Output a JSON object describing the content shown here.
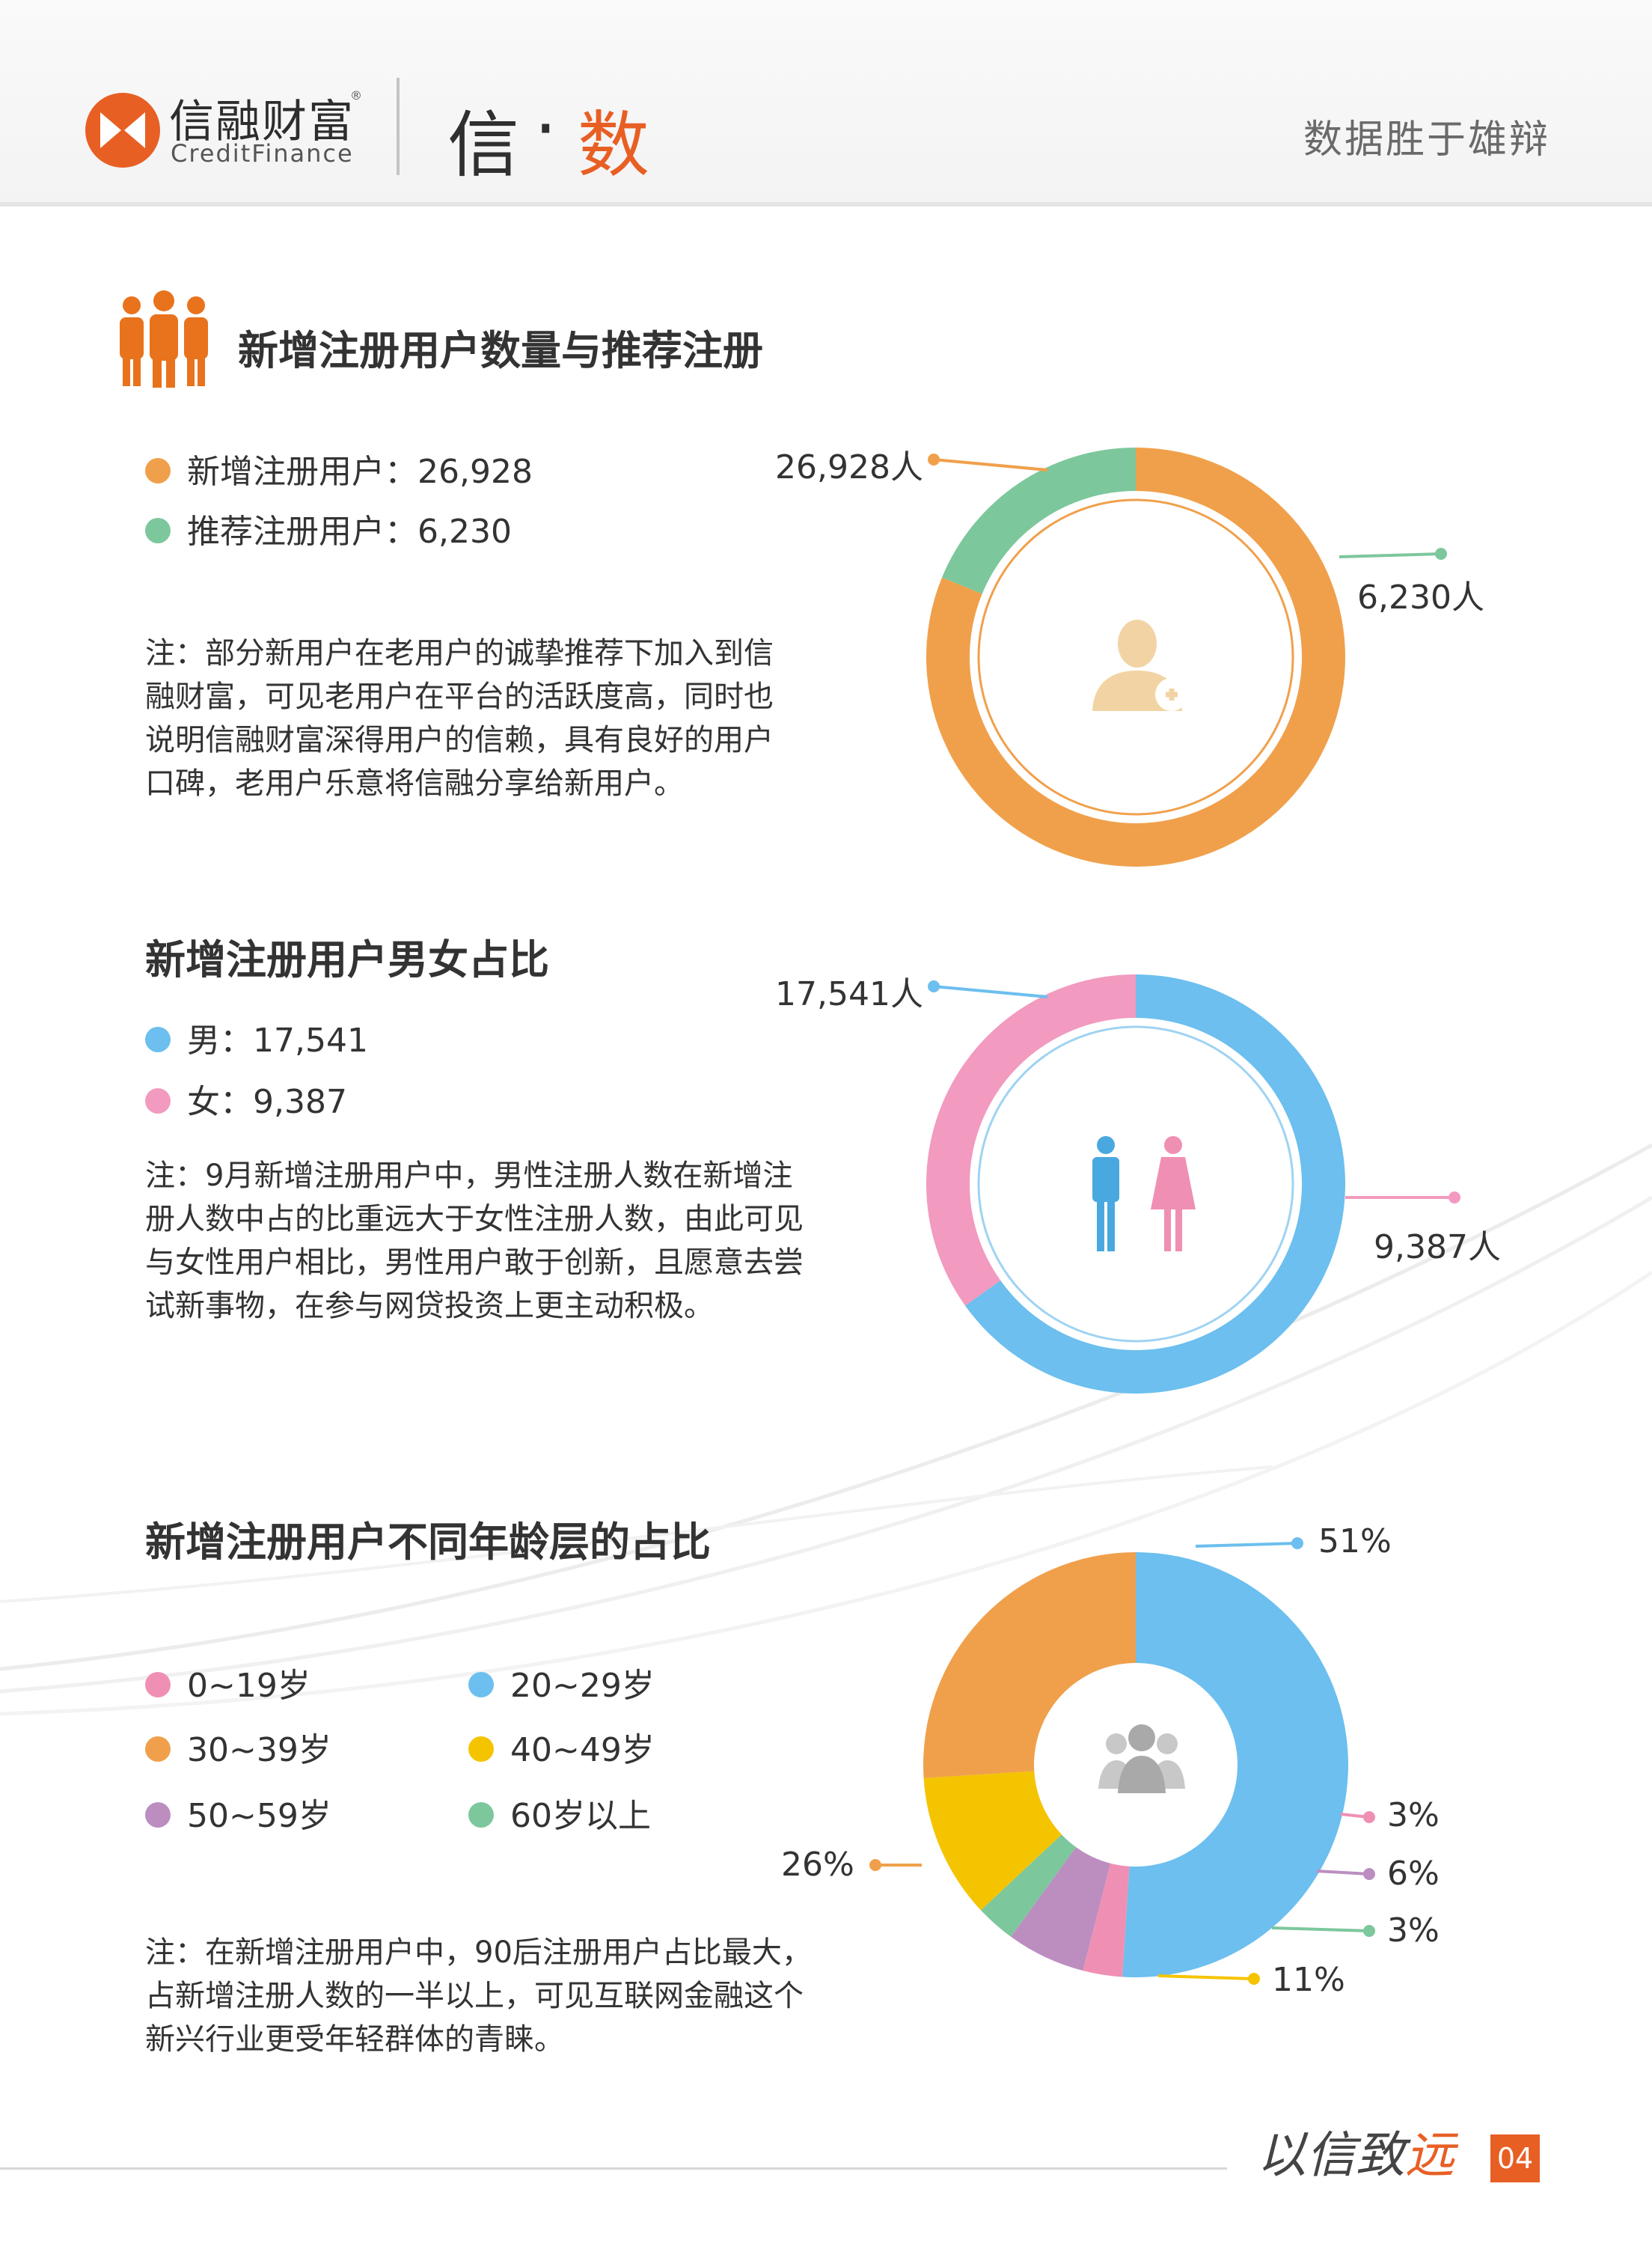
{
  "header": {
    "logo_cn": "信融财富",
    "logo_reg": "®",
    "logo_en": "CreditFinance",
    "brand_a": "信",
    "brand_dot": "·",
    "brand_b": "数",
    "slogan": "数据胜于雄辩",
    "logo_color": "#e85f24"
  },
  "section1": {
    "title": "新增注册用户数量与推荐注册",
    "legend": [
      {
        "label": "新增注册用户：26,928",
        "color": "#f0a04b"
      },
      {
        "label": "推荐注册用户：6,230",
        "color": "#7dc79c"
      }
    ],
    "note": [
      "注：部分新用户在老用户的诚挚推荐下加入到信",
      "融财富，可见老用户在平台的活跃度高，同时也",
      "说明信融财富深得用户的信赖，具有良好的用户",
      "口碑，老用户乐意将信融分享给新用户。"
    ],
    "callouts": [
      "26,928人",
      "6,230人"
    ],
    "center_icon": "user-add-icon"
  },
  "section2": {
    "title": "新增注册用户男女占比",
    "legend": [
      {
        "label": "男：17,541",
        "color": "#6cbfee"
      },
      {
        "label": "女：9,387",
        "color": "#f29abf"
      }
    ],
    "note": [
      "注：9月新增注册用户中，男性注册人数在新增注",
      "册人数中占的比重远大于女性注册人数，由此可见",
      "与女性用户相比，男性用户敢于创新，且愿意去尝",
      "试新事物，在参与网贷投资上更主动积极。"
    ],
    "callouts": [
      "17,541人",
      "9,387人"
    ],
    "center_icon": "male-female-icon"
  },
  "section3": {
    "title": "新增注册用户不同年龄层的占比",
    "legend": [
      {
        "label": "0~19岁",
        "color": "#f08fb4"
      },
      {
        "label": "20~29岁",
        "color": "#6cbfee"
      },
      {
        "label": "30~39岁",
        "color": "#f0a04b"
      },
      {
        "label": "40~49岁",
        "color": "#f5c400"
      },
      {
        "label": "50~59岁",
        "color": "#bc8ec0"
      },
      {
        "label": "60岁以上",
        "color": "#7dc79c"
      }
    ],
    "note": [
      "注：在新增注册用户中，90后注册用户占比最大，",
      "占新增注册人数的一半以上，可见互联网金融这个",
      "新兴行业更受年轻群体的青睐。"
    ],
    "callouts": [
      "51%",
      "3%",
      "6%",
      "3%",
      "11%",
      "26%"
    ],
    "center_icon": "user-group-icon"
  },
  "footer": {
    "motto_a": "以信致",
    "motto_b": "远",
    "page_number": "04"
  },
  "chart_data": [
    {
      "type": "pie",
      "title": "新增注册用户数量与推荐注册",
      "categories": [
        "新增注册用户",
        "推荐注册用户"
      ],
      "values": [
        26928,
        6230
      ],
      "colors": [
        "#f0a04b",
        "#7dc79c"
      ],
      "unit": "人",
      "style": "donut"
    },
    {
      "type": "pie",
      "title": "新增注册用户男女占比",
      "categories": [
        "男",
        "女"
      ],
      "values": [
        17541,
        9387
      ],
      "colors": [
        "#6cbfee",
        "#f29abf"
      ],
      "unit": "人",
      "style": "donut"
    },
    {
      "type": "pie",
      "title": "新增注册用户不同年龄层的占比",
      "categories": [
        "20~29岁",
        "0~19岁",
        "50~59岁",
        "60岁以上",
        "40~49岁",
        "30~39岁"
      ],
      "values": [
        51,
        3,
        6,
        3,
        11,
        26
      ],
      "colors": [
        "#6cbfee",
        "#f08fb4",
        "#bc8ec0",
        "#7dc79c",
        "#f5c400",
        "#f0a04b"
      ],
      "unit": "%",
      "style": "donut"
    }
  ]
}
